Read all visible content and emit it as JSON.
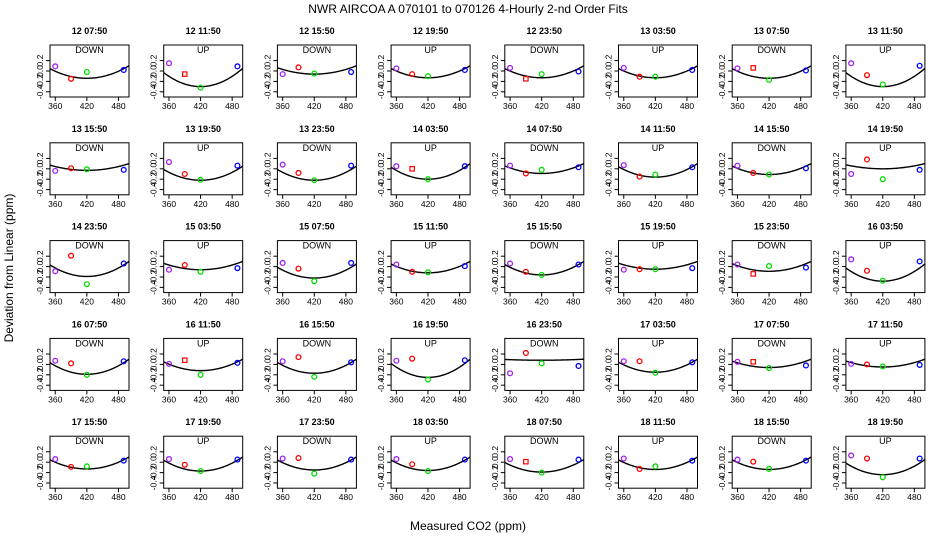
{
  "chart_data": {
    "type": "scatter",
    "title": "NWR   AIRCOA A    070101 to 070126   4-Hourly 2-nd Order Fits",
    "xlabel": "Measured CO2 (ppm)",
    "ylabel": "Deviation from Linear (ppm)",
    "xlim": [
      350,
      500
    ],
    "ylim": [
      -0.5,
      0.5
    ],
    "xticks": [
      360,
      420,
      480
    ],
    "xtick_labels": [
      "360",
      "420",
      "480"
    ],
    "yticks": [
      -0.4,
      -0.2,
      0.0,
      0.2
    ],
    "ytick_labels": [
      "-0.4",
      "-0.2",
      "0.0",
      "0.2"
    ],
    "standard_x": [
      360,
      390,
      420,
      490
    ],
    "marker_colors": [
      "#a020f0",
      "#ff0000",
      "#00dd00",
      "#0000ff"
    ],
    "panels": [
      {
        "label": "12 07:50",
        "dir": "DOWN",
        "fit": [
          -0.14,
          0.1
        ],
        "markers": [
          "o",
          "o",
          "o",
          "o"
        ],
        "y": [
          0.09,
          -0.15,
          -0.02,
          0.02
        ]
      },
      {
        "label": "12 11:50",
        "dir": "UP",
        "fit": [
          -0.3,
          0.05
        ],
        "markers": [
          "o",
          "s",
          "o",
          "o"
        ],
        "y": [
          0.15,
          -0.06,
          -0.32,
          0.09
        ]
      },
      {
        "label": "12 15:50",
        "dir": "DOWN",
        "fit": [
          -0.06,
          0.1
        ],
        "markers": [
          "o",
          "o",
          "o",
          "o"
        ],
        "y": [
          -0.06,
          0.07,
          -0.05,
          -0.02
        ]
      },
      {
        "label": "12 19:50",
        "dir": "UP",
        "fit": [
          -0.13,
          0.1
        ],
        "markers": [
          "o",
          "o",
          "o",
          "o"
        ],
        "y": [
          0.05,
          -0.06,
          -0.1,
          0.02
        ]
      },
      {
        "label": "12 23:50",
        "dir": "DOWN",
        "fit": [
          -0.13,
          0.1
        ],
        "markers": [
          "o",
          "s",
          "o",
          "o"
        ],
        "y": [
          0.06,
          -0.15,
          -0.06,
          -0.01
        ]
      },
      {
        "label": "13 03:50",
        "dir": "UP",
        "fit": [
          -0.13,
          0.1
        ],
        "markers": [
          "o",
          "o",
          "o",
          "o"
        ],
        "y": [
          0.06,
          -0.11,
          -0.11,
          0.02
        ]
      },
      {
        "label": "13 07:50",
        "dir": "DOWN",
        "fit": [
          -0.14,
          0.1
        ],
        "markers": [
          "o",
          "s",
          "o",
          "o"
        ],
        "y": [
          0.05,
          0.06,
          -0.17,
          0.01
        ]
      },
      {
        "label": "13 11:50",
        "dir": "UP",
        "fit": [
          -0.3,
          0.05
        ],
        "markers": [
          "o",
          "o",
          "o",
          "o"
        ],
        "y": [
          0.15,
          -0.08,
          -0.26,
          0.1
        ]
      },
      {
        "label": "13 15:50",
        "dir": "DOWN",
        "fit": [
          -0.03,
          0.1
        ],
        "markers": [
          "o",
          "o",
          "o",
          "o"
        ],
        "y": [
          -0.04,
          0.01,
          -0.01,
          -0.02
        ]
      },
      {
        "label": "13 19:50",
        "dir": "UP",
        "fit": [
          -0.22,
          0.05
        ],
        "markers": [
          "o",
          "o",
          "o",
          "o"
        ],
        "y": [
          0.13,
          -0.1,
          -0.21,
          0.06
        ]
      },
      {
        "label": "13 23:50",
        "dir": "DOWN",
        "fit": [
          -0.22,
          0.05
        ],
        "markers": [
          "o",
          "o",
          "o",
          "o"
        ],
        "y": [
          0.08,
          -0.08,
          -0.22,
          0.06
        ]
      },
      {
        "label": "14 03:50",
        "dir": "UP",
        "fit": [
          -0.2,
          0.1
        ],
        "markers": [
          "o",
          "s",
          "o",
          "o"
        ],
        "y": [
          0.05,
          -0.0,
          -0.2,
          0.05
        ]
      },
      {
        "label": "14 07:50",
        "dir": "DOWN",
        "fit": [
          -0.09,
          0.1
        ],
        "markers": [
          "o",
          "o",
          "o",
          "o"
        ],
        "y": [
          0.06,
          -0.09,
          -0.02,
          0.03
        ]
      },
      {
        "label": "14 11:50",
        "dir": "UP",
        "fit": [
          -0.16,
          0.1
        ],
        "markers": [
          "o",
          "o",
          "o",
          "o"
        ],
        "y": [
          0.07,
          -0.15,
          -0.11,
          0.03
        ]
      },
      {
        "label": "14 15:50",
        "dir": "DOWN",
        "fit": [
          -0.11,
          0.1
        ],
        "markers": [
          "o",
          "o",
          "o",
          "o"
        ],
        "y": [
          0.06,
          -0.08,
          -0.11,
          0.01
        ]
      },
      {
        "label": "14 19:50",
        "dir": "UP",
        "fit": [
          -0.0,
          0.1
        ],
        "markers": [
          "o",
          "o",
          "o",
          "o"
        ],
        "y": [
          -0.1,
          0.18,
          -0.2,
          -0.02
        ]
      },
      {
        "label": "14 23:50",
        "dir": "DOWN",
        "fit": [
          -0.19,
          0.1
        ],
        "markers": [
          "o",
          "o",
          "o",
          "o"
        ],
        "y": [
          -0.09,
          0.21,
          -0.34,
          0.06
        ]
      },
      {
        "label": "15 03:50",
        "dir": "UP",
        "fit": [
          -0.06,
          0.1
        ],
        "markers": [
          "o",
          "o",
          "o",
          "o"
        ],
        "y": [
          -0.06,
          0.03,
          -0.1,
          -0.03
        ]
      },
      {
        "label": "15 07:50",
        "dir": "DOWN",
        "fit": [
          -0.22,
          0.05
        ],
        "markers": [
          "o",
          "o",
          "o",
          "o"
        ],
        "y": [
          0.07,
          -0.04,
          -0.28,
          0.07
        ]
      },
      {
        "label": "15 11:50",
        "dir": "UP",
        "fit": [
          -0.12,
          0.1
        ],
        "markers": [
          "o",
          "o",
          "o",
          "o"
        ],
        "y": [
          0.04,
          -0.1,
          -0.11,
          0.01
        ]
      },
      {
        "label": "15 15:50",
        "dir": "DOWN",
        "fit": [
          -0.16,
          0.1
        ],
        "markers": [
          "o",
          "o",
          "o",
          "o"
        ],
        "y": [
          0.06,
          -0.1,
          -0.16,
          0.04
        ]
      },
      {
        "label": "15 19:50",
        "dir": "UP",
        "fit": [
          -0.05,
          0.1
        ],
        "markers": [
          "o",
          "o",
          "o",
          "o"
        ],
        "y": [
          -0.06,
          -0.05,
          -0.05,
          -0.03
        ]
      },
      {
        "label": "15 23:50",
        "dir": "DOWN",
        "fit": [
          -0.09,
          0.1
        ],
        "markers": [
          "o",
          "s",
          "o",
          "o"
        ],
        "y": [
          0.04,
          -0.14,
          0.01,
          -0.02
        ]
      },
      {
        "label": "16 03:50",
        "dir": "UP",
        "fit": [
          -0.28,
          0.05
        ],
        "markers": [
          "o",
          "o",
          "o",
          "o"
        ],
        "y": [
          0.14,
          -0.08,
          -0.27,
          0.1
        ]
      },
      {
        "label": "16 07:50",
        "dir": "DOWN",
        "fit": [
          -0.19,
          0.1
        ],
        "markers": [
          "o",
          "o",
          "o",
          "o"
        ],
        "y": [
          0.07,
          0.02,
          -0.2,
          0.06
        ]
      },
      {
        "label": "16 11:50",
        "dir": "UP",
        "fit": [
          -0.12,
          0.1
        ],
        "markers": [
          "o",
          "s",
          "o",
          "o"
        ],
        "y": [
          0.01,
          0.08,
          -0.2,
          0.03
        ]
      },
      {
        "label": "16 15:50",
        "dir": "DOWN",
        "fit": [
          -0.17,
          0.1
        ],
        "markers": [
          "o",
          "o",
          "o",
          "o"
        ],
        "y": [
          0.06,
          0.14,
          -0.24,
          0.04
        ]
      },
      {
        "label": "16 19:50",
        "dir": "UP",
        "fit": [
          -0.25,
          0.1
        ],
        "markers": [
          "o",
          "o",
          "o",
          "o"
        ],
        "y": [
          0.07,
          0.11,
          -0.29,
          0.08
        ]
      },
      {
        "label": "16 23:50",
        "dir": "DOWN",
        "fit": [
          0.08,
          0.1
        ],
        "markers": [
          "o",
          "o",
          "o",
          "o"
        ],
        "y": [
          -0.17,
          0.22,
          0.02,
          -0.03
        ]
      },
      {
        "label": "17 03:50",
        "dir": "UP",
        "fit": [
          -0.15,
          0.1
        ],
        "markers": [
          "o",
          "o",
          "o",
          "o"
        ],
        "y": [
          0.06,
          0.06,
          -0.16,
          0.04
        ]
      },
      {
        "label": "17 07:50",
        "dir": "DOWN",
        "fit": [
          -0.06,
          0.1
        ],
        "markers": [
          "o",
          "s",
          "o",
          "o"
        ],
        "y": [
          0.05,
          0.05,
          -0.07,
          -0.02
        ]
      },
      {
        "label": "17 11:50",
        "dir": "UP",
        "fit": [
          -0.05,
          0.1
        ],
        "markers": [
          "o",
          "o",
          "o",
          "o"
        ],
        "y": [
          0.01,
          0.0,
          -0.04,
          -0.01
        ]
      },
      {
        "label": "17 15:50",
        "dir": "DOWN",
        "fit": [
          -0.13,
          0.1
        ],
        "markers": [
          "o",
          "o",
          "o",
          "o"
        ],
        "y": [
          0.06,
          -0.09,
          -0.08,
          0.03
        ]
      },
      {
        "label": "17 19:50",
        "dir": "UP",
        "fit": [
          -0.17,
          0.1
        ],
        "markers": [
          "o",
          "o",
          "o",
          "o"
        ],
        "y": [
          0.06,
          -0.05,
          -0.17,
          0.05
        ]
      },
      {
        "label": "17 23:50",
        "dir": "DOWN",
        "fit": [
          -0.15,
          0.1
        ],
        "markers": [
          "o",
          "o",
          "o",
          "o"
        ],
        "y": [
          0.07,
          0.08,
          -0.22,
          0.05
        ]
      },
      {
        "label": "18 03:50",
        "dir": "UP",
        "fit": [
          -0.16,
          0.1
        ],
        "markers": [
          "o",
          "o",
          "o",
          "o"
        ],
        "y": [
          0.06,
          -0.04,
          -0.17,
          0.05
        ]
      },
      {
        "label": "18 07:50",
        "dir": "DOWN",
        "fit": [
          -0.19,
          0.05
        ],
        "markers": [
          "o",
          "s",
          "o",
          "o"
        ],
        "y": [
          0.06,
          0.01,
          -0.2,
          0.05
        ]
      },
      {
        "label": "18 11:50",
        "dir": "UP",
        "fit": [
          -0.14,
          0.1
        ],
        "markers": [
          "o",
          "o",
          "o",
          "o"
        ],
        "y": [
          0.07,
          -0.13,
          -0.08,
          0.03
        ]
      },
      {
        "label": "18 15:50",
        "dir": "DOWN",
        "fit": [
          -0.14,
          0.1
        ],
        "markers": [
          "o",
          "o",
          "o",
          "o"
        ],
        "y": [
          0.05,
          0.01,
          -0.13,
          0.03
        ]
      },
      {
        "label": "18 19:50",
        "dir": "UP",
        "fit": [
          -0.24,
          0.05
        ],
        "markers": [
          "o",
          "o",
          "o",
          "o"
        ],
        "y": [
          0.13,
          0.07,
          -0.29,
          0.07
        ]
      }
    ]
  }
}
